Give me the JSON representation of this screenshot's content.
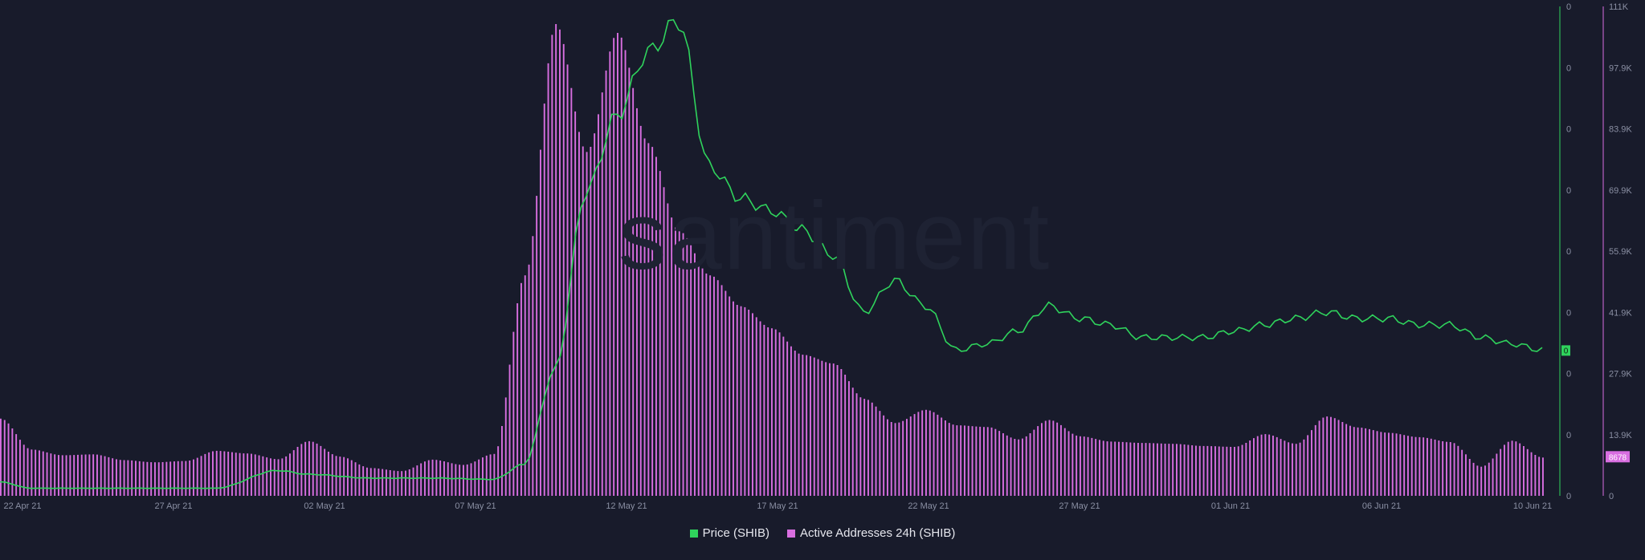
{
  "watermark": "santiment",
  "colors": {
    "background": "#181b2b",
    "price_line": "#2fd35c",
    "active_addresses": "#d86ee0",
    "axis_text": "#8a8fa3",
    "badge_text": "#0f1e12"
  },
  "legend": [
    {
      "label": "Price (SHIB)",
      "color": "#2fd35c"
    },
    {
      "label": "Active Addresses 24h (SHIB)",
      "color": "#d86ee0"
    }
  ],
  "chart_data": {
    "type": "bar",
    "x_ticks": [
      "22 Apr 21",
      "27 Apr 21",
      "02 May 21",
      "07 May 21",
      "12 May 21",
      "17 May 21",
      "22 May 21",
      "27 May 21",
      "01 Jun 21",
      "06 Jun 21",
      "10 Jun 21"
    ],
    "x_range": [
      "2021-04-21",
      "2021-06-10"
    ],
    "y_axis_price": {
      "ticks": [
        "0",
        "0",
        "0",
        "0",
        "0",
        "0",
        "0",
        "0",
        "0"
      ],
      "current_value_badge": "0"
    },
    "y_axis_addresses": {
      "ticks": [
        "0",
        "13.9K",
        "27.9K",
        "41.9K",
        "55.9K",
        "69.9K",
        "83.9K",
        "97.9K",
        "111K"
      ],
      "ylim": [
        0,
        111000
      ],
      "current_value_badge": "8678"
    },
    "series": [
      {
        "name": "Active Addresses 24h (SHIB)",
        "kind": "bar",
        "points": [
          [
            "2021-04-21",
            17500
          ],
          [
            "2021-04-22",
            10500
          ],
          [
            "2021-04-23",
            9200
          ],
          [
            "2021-04-24",
            9400
          ],
          [
            "2021-04-25",
            8100
          ],
          [
            "2021-04-26",
            7600
          ],
          [
            "2021-04-27",
            7900
          ],
          [
            "2021-04-28",
            10200
          ],
          [
            "2021-04-29",
            9600
          ],
          [
            "2021-04-30",
            8300
          ],
          [
            "2021-05-01",
            12400
          ],
          [
            "2021-05-02",
            8900
          ],
          [
            "2021-05-03",
            6300
          ],
          [
            "2021-05-04",
            5600
          ],
          [
            "2021-05-05",
            8200
          ],
          [
            "2021-05-06",
            7000
          ],
          [
            "2021-05-07",
            9500
          ],
          [
            "2021-05-08",
            50000
          ],
          [
            "2021-05-09",
            107000
          ],
          [
            "2021-05-10",
            78000
          ],
          [
            "2021-05-11",
            105000
          ],
          [
            "2021-05-12",
            80000
          ],
          [
            "2021-05-13",
            60000
          ],
          [
            "2021-05-14",
            50000
          ],
          [
            "2021-05-15",
            43000
          ],
          [
            "2021-05-16",
            38000
          ],
          [
            "2021-05-17",
            32000
          ],
          [
            "2021-05-18",
            30000
          ],
          [
            "2021-05-19",
            22000
          ],
          [
            "2021-05-20",
            16500
          ],
          [
            "2021-05-21",
            19500
          ],
          [
            "2021-05-22",
            16000
          ],
          [
            "2021-05-23",
            15600
          ],
          [
            "2021-05-24",
            12800
          ],
          [
            "2021-05-25",
            17200
          ],
          [
            "2021-05-26",
            13500
          ],
          [
            "2021-05-27",
            12300
          ],
          [
            "2021-05-28",
            12000
          ],
          [
            "2021-05-29",
            11800
          ],
          [
            "2021-05-30",
            11300
          ],
          [
            "2021-05-31",
            11100
          ],
          [
            "2021-06-01",
            14000
          ],
          [
            "2021-06-02",
            11800
          ],
          [
            "2021-06-03",
            18000
          ],
          [
            "2021-06-04",
            15500
          ],
          [
            "2021-06-05",
            14300
          ],
          [
            "2021-06-06",
            13300
          ],
          [
            "2021-06-07",
            12200
          ],
          [
            "2021-06-08",
            6600
          ],
          [
            "2021-06-09",
            12500
          ],
          [
            "2021-06-10",
            8678
          ]
        ]
      },
      {
        "name": "Price (SHIB)",
        "kind": "line",
        "points": [
          [
            "2021-04-21",
            2.2e-06
          ],
          [
            "2021-04-22",
            1.2e-06
          ],
          [
            "2021-04-24",
            1.2e-06
          ],
          [
            "2021-04-26",
            1.2e-06
          ],
          [
            "2021-04-28",
            1.2e-06
          ],
          [
            "2021-04-30",
            4e-06
          ],
          [
            "2021-05-01",
            3.4e-06
          ],
          [
            "2021-05-03",
            2.8e-06
          ],
          [
            "2021-05-05",
            2.8e-06
          ],
          [
            "2021-05-07",
            2.6e-06
          ],
          [
            "2021-05-08",
            5e-06
          ],
          [
            "2021-05-09",
            2e-05
          ],
          [
            "2021-05-10",
            4.8e-05
          ],
          [
            "2021-05-11",
            6e-05
          ],
          [
            "2021-05-12",
            7e-05
          ],
          [
            "2021-05-13",
            7.5e-05
          ],
          [
            "2021-05-14",
            5.2e-05
          ],
          [
            "2021-05-15",
            4.7e-05
          ],
          [
            "2021-05-16",
            4.5e-05
          ],
          [
            "2021-05-17",
            4.2e-05
          ],
          [
            "2021-05-18",
            3.8e-05
          ],
          [
            "2021-05-19",
            2.9e-05
          ],
          [
            "2021-05-20",
            3.4e-05
          ],
          [
            "2021-05-21",
            3e-05
          ],
          [
            "2021-05-22",
            2.3e-05
          ],
          [
            "2021-05-23",
            2.4e-05
          ],
          [
            "2021-05-24",
            2.6e-05
          ],
          [
            "2021-05-25",
            3e-05
          ],
          [
            "2021-05-26",
            2.8e-05
          ],
          [
            "2021-05-27",
            2.7e-05
          ],
          [
            "2021-05-28",
            2.5e-05
          ],
          [
            "2021-05-29",
            2.5e-05
          ],
          [
            "2021-05-30",
            2.5e-05
          ],
          [
            "2021-05-31",
            2.6e-05
          ],
          [
            "2021-06-01",
            2.7e-05
          ],
          [
            "2021-06-02",
            2.8e-05
          ],
          [
            "2021-06-03",
            2.9e-05
          ],
          [
            "2021-06-04",
            2.8e-05
          ],
          [
            "2021-06-05",
            2.8e-05
          ],
          [
            "2021-06-06",
            2.7e-05
          ],
          [
            "2021-06-07",
            2.7e-05
          ],
          [
            "2021-06-08",
            2.5e-05
          ],
          [
            "2021-06-09",
            2.4e-05
          ],
          [
            "2021-06-10",
            2.3e-05
          ]
        ]
      }
    ]
  }
}
